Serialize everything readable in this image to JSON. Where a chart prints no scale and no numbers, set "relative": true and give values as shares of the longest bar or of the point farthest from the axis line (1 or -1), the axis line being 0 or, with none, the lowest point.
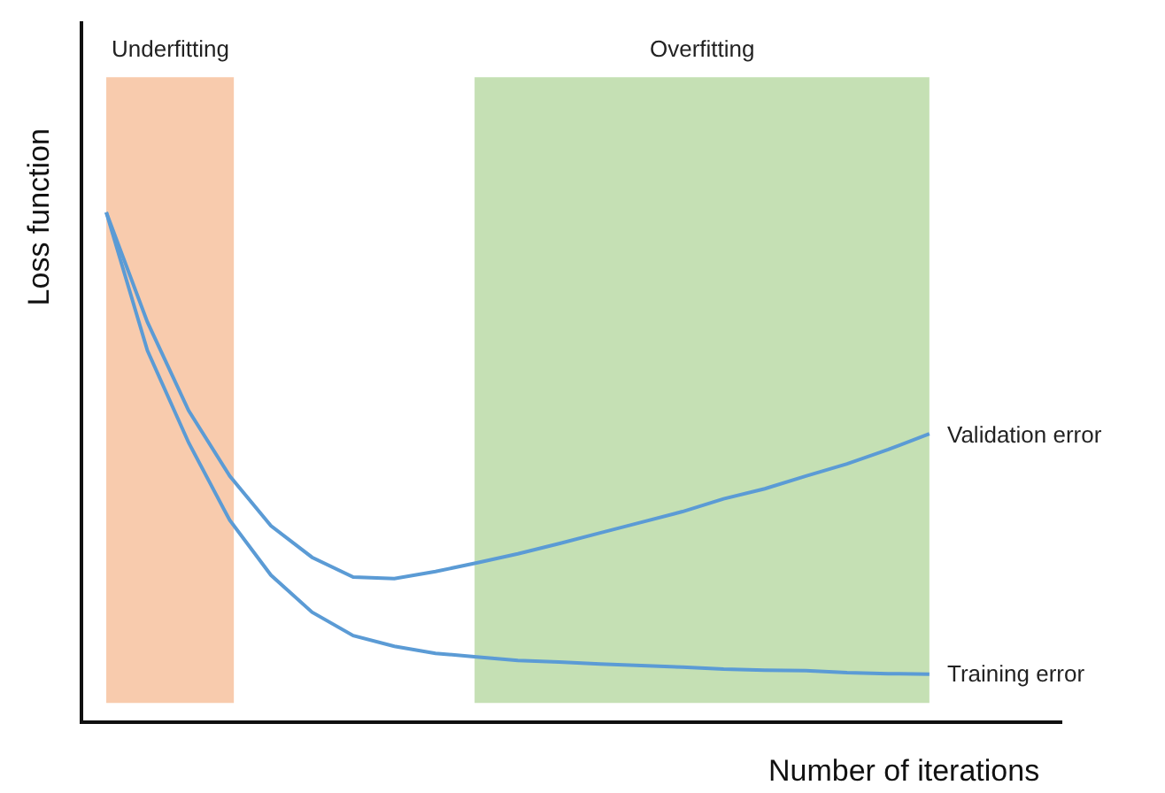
{
  "chart_data": {
    "type": "line",
    "relative": true,
    "xlabel": "Number of iterations",
    "ylabel": "Loss function",
    "legend": false,
    "grid": false,
    "categories": [
      null,
      null,
      null,
      null,
      null,
      null,
      null,
      null,
      null,
      null,
      null,
      null,
      null,
      null,
      null,
      null,
      null,
      null,
      null,
      null,
      null
    ],
    "series": [
      {
        "name": "Validation error",
        "color": "#5b9bd5",
        "values": [
          1.0,
          0.784,
          0.61,
          0.481,
          0.383,
          0.321,
          0.282,
          0.279,
          0.293,
          0.31,
          0.328,
          0.348,
          0.369,
          0.39,
          0.411,
          0.436,
          0.456,
          0.481,
          0.505,
          0.533,
          0.564
        ]
      },
      {
        "name": "Training error",
        "color": "#5b9bd5",
        "values": [
          1.0,
          0.728,
          0.547,
          0.394,
          0.286,
          0.213,
          0.167,
          0.146,
          0.132,
          0.125,
          0.118,
          0.115,
          0.111,
          0.108,
          0.105,
          0.101,
          0.099,
          0.098,
          0.094,
          0.092,
          0.091
        ]
      }
    ],
    "annotations": [
      "Underfitting",
      "Overfitting"
    ]
  }
}
